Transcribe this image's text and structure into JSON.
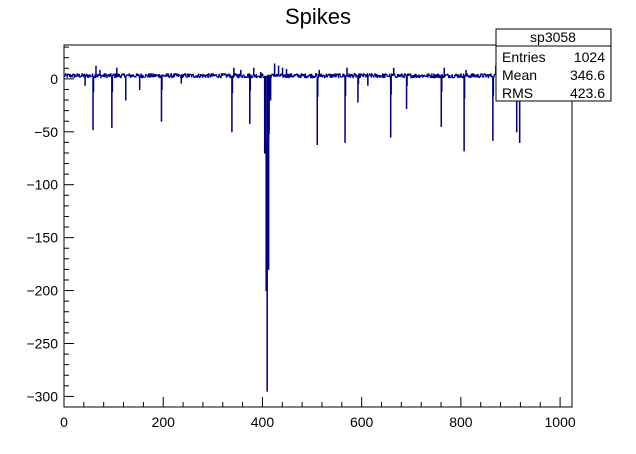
{
  "chart_data": {
    "type": "line",
    "title": "Spikes",
    "xlabel": "",
    "ylabel": "",
    "xlim": [
      0,
      1024
    ],
    "ylim": [
      -310,
      32
    ],
    "x_ticks": [
      0,
      200,
      400,
      600,
      800,
      1000
    ],
    "x_tick_labels": [
      "0",
      "200",
      "400",
      "600",
      "800",
      "1000"
    ],
    "y_ticks": [
      0,
      -50,
      -100,
      -150,
      -200,
      -250,
      -300
    ],
    "y_tick_labels": [
      "0",
      "−50",
      "−100",
      "−150",
      "−200",
      "−250",
      "−300"
    ],
    "line_color": "#000080",
    "grid": false,
    "baseline": 3,
    "spikes": [
      {
        "x": 42,
        "y": -6
      },
      {
        "x": 58,
        "y": -48
      },
      {
        "x": 64,
        "y": 12
      },
      {
        "x": 72,
        "y": 8
      },
      {
        "x": 96,
        "y": -46
      },
      {
        "x": 106,
        "y": 10
      },
      {
        "x": 124,
        "y": -20
      },
      {
        "x": 152,
        "y": -10
      },
      {
        "x": 196,
        "y": -40
      },
      {
        "x": 236,
        "y": -4
      },
      {
        "x": 338,
        "y": -50
      },
      {
        "x": 342,
        "y": 10
      },
      {
        "x": 356,
        "y": 8
      },
      {
        "x": 374,
        "y": -42
      },
      {
        "x": 382,
        "y": 10
      },
      {
        "x": 396,
        "y": 6
      },
      {
        "x": 404,
        "y": -70
      },
      {
        "x": 407,
        "y": -200
      },
      {
        "x": 409,
        "y": -295
      },
      {
        "x": 412,
        "y": -180
      },
      {
        "x": 416,
        "y": -20
      },
      {
        "x": 424,
        "y": 14
      },
      {
        "x": 432,
        "y": 12
      },
      {
        "x": 440,
        "y": 10
      },
      {
        "x": 448,
        "y": 9
      },
      {
        "x": 510,
        "y": -62
      },
      {
        "x": 514,
        "y": 8
      },
      {
        "x": 566,
        "y": -60
      },
      {
        "x": 570,
        "y": 10
      },
      {
        "x": 592,
        "y": -22
      },
      {
        "x": 612,
        "y": -6
      },
      {
        "x": 658,
        "y": -55
      },
      {
        "x": 664,
        "y": 10
      },
      {
        "x": 690,
        "y": -28
      },
      {
        "x": 760,
        "y": -45
      },
      {
        "x": 766,
        "y": 10
      },
      {
        "x": 806,
        "y": -68
      },
      {
        "x": 810,
        "y": 8
      },
      {
        "x": 864,
        "y": -58
      },
      {
        "x": 870,
        "y": 12
      },
      {
        "x": 900,
        "y": -20
      },
      {
        "x": 912,
        "y": -50
      },
      {
        "x": 918,
        "y": -60
      },
      {
        "x": 924,
        "y": -15
      }
    ],
    "stats_box": {
      "name": "sp3058",
      "rows": [
        {
          "label": "Entries",
          "value": "1024"
        },
        {
          "label": "Mean",
          "value": "346.6"
        },
        {
          "label": "RMS",
          "value": "423.6"
        }
      ]
    }
  }
}
